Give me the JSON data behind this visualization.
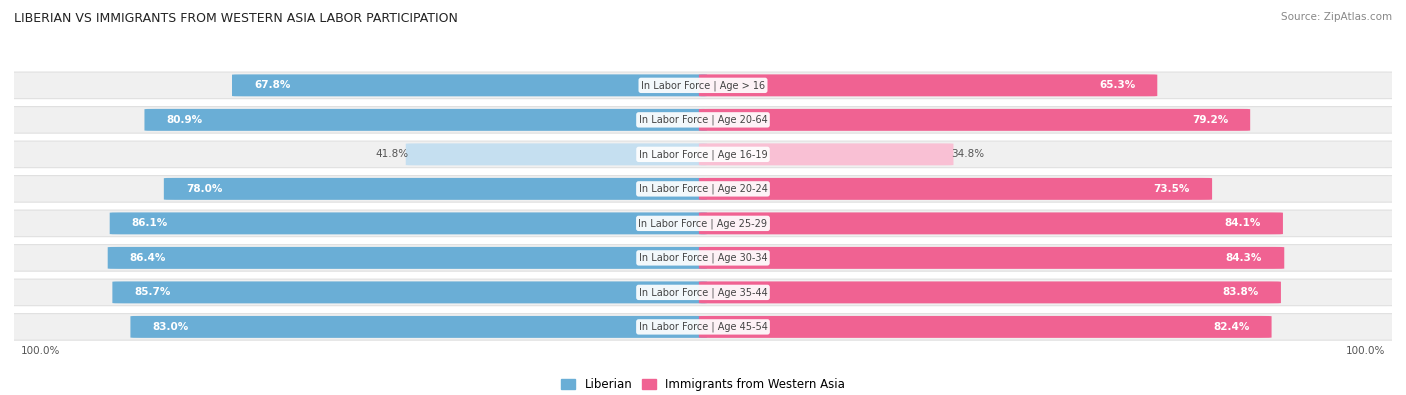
{
  "title": "LIBERIAN VS IMMIGRANTS FROM WESTERN ASIA LABOR PARTICIPATION",
  "source": "Source: ZipAtlas.com",
  "categories": [
    "In Labor Force | Age > 16",
    "In Labor Force | Age 20-64",
    "In Labor Force | Age 16-19",
    "In Labor Force | Age 20-24",
    "In Labor Force | Age 25-29",
    "In Labor Force | Age 30-34",
    "In Labor Force | Age 35-44",
    "In Labor Force | Age 45-54"
  ],
  "liberian_values": [
    67.8,
    80.9,
    41.8,
    78.0,
    86.1,
    86.4,
    85.7,
    83.0
  ],
  "immigrant_values": [
    65.3,
    79.2,
    34.8,
    73.5,
    84.1,
    84.3,
    83.8,
    82.4
  ],
  "liberian_color": "#6aaed6",
  "liberian_light_color": "#c5dff0",
  "immigrant_color": "#f06292",
  "immigrant_light_color": "#f9c0d4",
  "row_bg_color": "#f0f0f0",
  "row_bg_border": "#e0e0e0",
  "figsize": [
    14.06,
    3.95
  ],
  "dpi": 100,
  "threshold": 60
}
